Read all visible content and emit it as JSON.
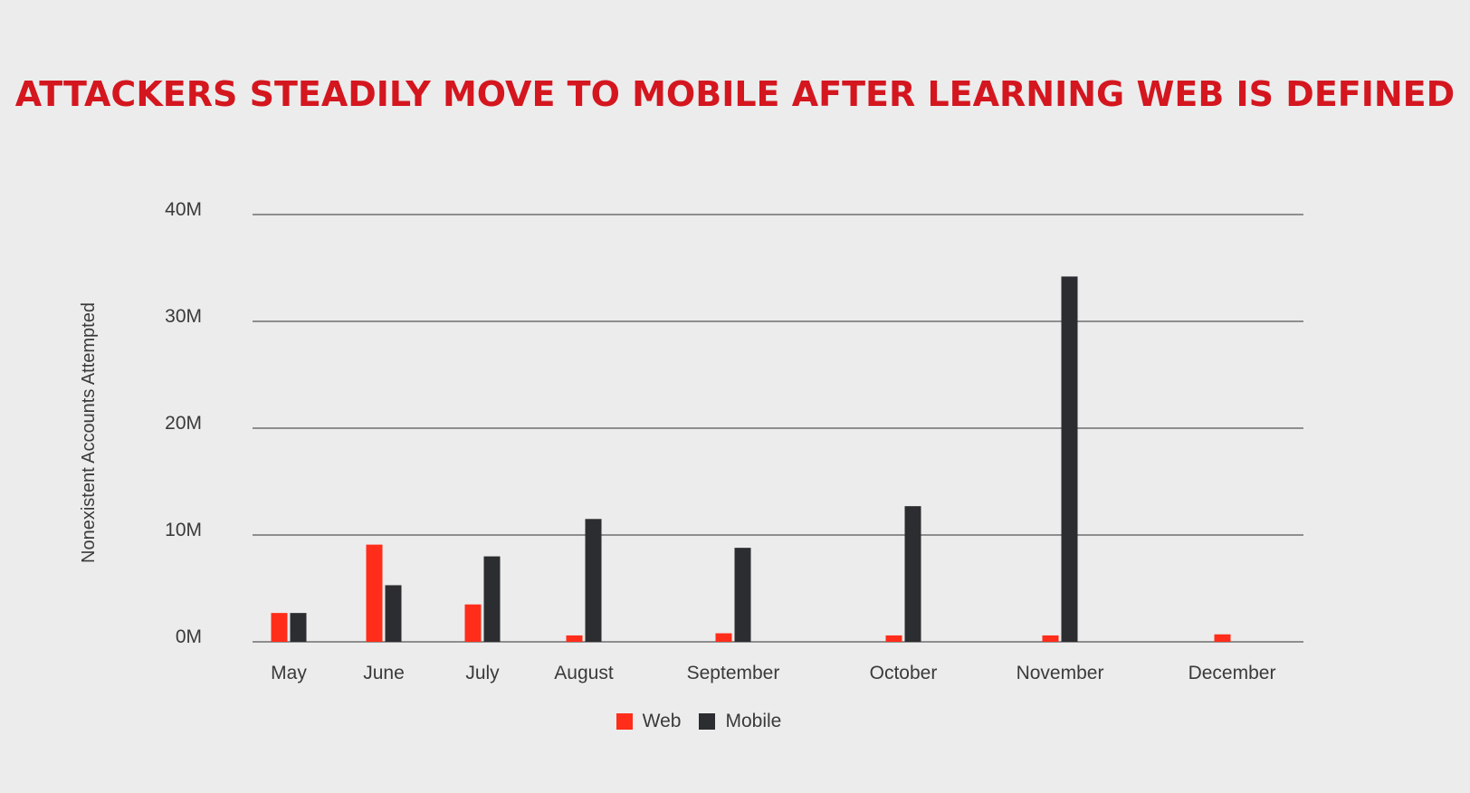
{
  "chart_data": {
    "type": "bar",
    "title": "ATTACKERS STEADILY MOVE TO MOBILE AFTER LEARNING WEB IS DEFINED",
    "ylabel": "Nonexistent Accounts Attempted",
    "xlabel": "",
    "categories": [
      "May",
      "June",
      "July",
      "August",
      "September",
      "October",
      "November",
      "December"
    ],
    "y_ticks": [
      {
        "value": 0,
        "label": "0M"
      },
      {
        "value": 10,
        "label": "10M"
      },
      {
        "value": 20,
        "label": "20M"
      },
      {
        "value": 30,
        "label": "30M"
      },
      {
        "value": 40,
        "label": "40M"
      }
    ],
    "ylim": [
      0,
      40
    ],
    "y_unit": "millions",
    "grid": true,
    "legend_position": "bottom-center",
    "series": [
      {
        "name": "Web",
        "color": "#ff2d1a",
        "values": [
          2.7,
          9.1,
          3.5,
          0.6,
          0.8,
          0.6,
          0.6,
          0.7
        ]
      },
      {
        "name": "Mobile",
        "color": "#2b2d31",
        "values": [
          2.7,
          5.3,
          8.0,
          11.5,
          8.8,
          12.7,
          34.2,
          0
        ]
      }
    ]
  }
}
